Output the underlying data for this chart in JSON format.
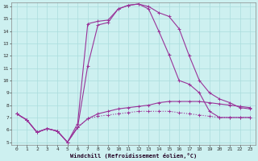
{
  "xlabel": "Windchill (Refroidissement éolien,°C)",
  "bg_color": "#cdf0f0",
  "grid_color": "#aadddd",
  "line_color": "#993399",
  "xmin": 0,
  "xmax": 23,
  "ymin": 5,
  "ymax": 16,
  "yticks": [
    5,
    6,
    7,
    8,
    9,
    10,
    11,
    12,
    13,
    14,
    15,
    16
  ],
  "xticks": [
    0,
    1,
    2,
    3,
    4,
    5,
    6,
    7,
    8,
    9,
    10,
    11,
    12,
    13,
    14,
    15,
    16,
    17,
    18,
    19,
    20,
    21,
    22,
    23
  ],
  "line1_x": [
    0,
    1,
    2,
    3,
    4,
    5,
    6,
    7,
    8,
    9,
    10,
    11,
    12,
    13,
    14,
    15,
    16,
    17,
    18,
    19,
    20,
    21,
    22,
    23
  ],
  "line1_y": [
    7.3,
    6.8,
    5.8,
    6.1,
    5.9,
    5.0,
    6.2,
    6.9,
    7.3,
    7.5,
    7.7,
    7.8,
    7.9,
    8.0,
    8.2,
    8.3,
    8.3,
    8.3,
    8.3,
    8.2,
    8.1,
    8.0,
    7.9,
    7.8
  ],
  "line2_x": [
    0,
    1,
    2,
    3,
    4,
    5,
    6,
    7,
    8,
    9,
    10,
    11,
    12,
    13,
    14,
    15,
    16,
    17,
    18,
    19,
    20,
    21,
    22,
    23
  ],
  "line2_y": [
    7.3,
    6.8,
    5.8,
    6.1,
    5.9,
    5.0,
    6.2,
    6.9,
    7.1,
    7.2,
    7.3,
    7.4,
    7.5,
    7.5,
    7.5,
    7.5,
    7.4,
    7.3,
    7.2,
    7.1,
    7.0,
    7.0,
    7.0,
    7.0
  ],
  "line3_x": [
    0,
    1,
    2,
    3,
    4,
    5,
    6,
    7,
    8,
    9,
    10,
    11,
    12,
    13,
    14,
    15,
    16,
    17,
    18,
    19,
    20,
    21,
    22,
    23
  ],
  "line3_y": [
    7.3,
    6.8,
    5.8,
    6.1,
    5.9,
    5.0,
    6.2,
    11.2,
    14.5,
    14.7,
    15.8,
    16.1,
    16.2,
    15.8,
    14.0,
    12.1,
    10.0,
    9.7,
    9.0,
    7.5,
    7.0,
    7.0,
    7.0,
    7.0
  ],
  "line4_x": [
    0,
    1,
    2,
    3,
    4,
    5,
    6,
    7,
    8,
    9,
    10,
    11,
    12,
    13,
    14,
    15,
    16,
    17,
    18,
    19,
    20,
    21,
    22,
    23
  ],
  "line4_y": [
    7.3,
    6.8,
    5.8,
    6.1,
    5.9,
    5.0,
    6.5,
    14.6,
    14.8,
    14.9,
    15.8,
    16.1,
    16.2,
    16.0,
    15.5,
    15.2,
    14.2,
    12.0,
    10.0,
    9.0,
    8.5,
    8.2,
    7.8,
    7.7
  ]
}
